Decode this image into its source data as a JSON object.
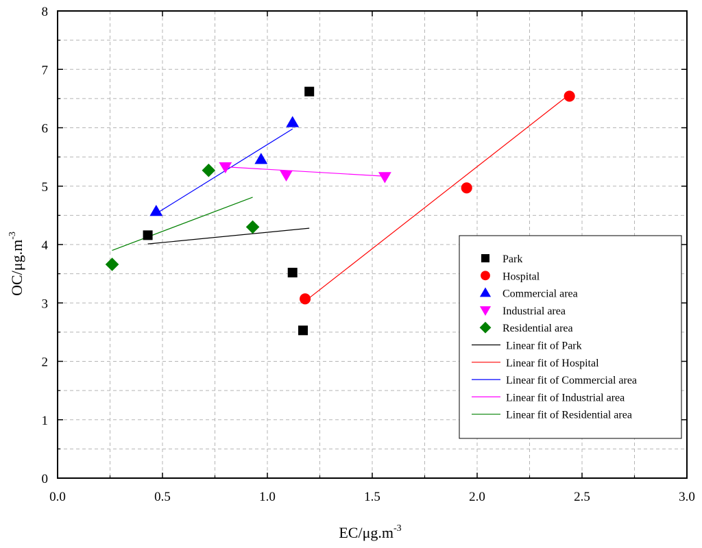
{
  "chart_data": {
    "type": "scatter",
    "xlabel": "EC/μg.m",
    "xlabel_sup": "-3",
    "ylabel": "OC/μg.m",
    "ylabel_sup": "-3",
    "xlim": [
      0,
      3
    ],
    "ylim": [
      0,
      8
    ],
    "grid": true,
    "legend_position": "right",
    "x_ticks": [
      {
        "value": 0,
        "label": "0.0"
      },
      {
        "value": 0.5,
        "label": "0.5"
      },
      {
        "value": 1.0,
        "label": "1.0"
      },
      {
        "value": 1.5,
        "label": "1.5"
      },
      {
        "value": 2.0,
        "label": "2.0"
      },
      {
        "value": 2.5,
        "label": "2.5"
      },
      {
        "value": 3.0,
        "label": "3.0"
      }
    ],
    "y_ticks": [
      {
        "value": 0,
        "label": "0"
      },
      {
        "value": 1,
        "label": "1"
      },
      {
        "value": 2,
        "label": "2"
      },
      {
        "value": 3,
        "label": "3"
      },
      {
        "value": 4,
        "label": "4"
      },
      {
        "value": 5,
        "label": "5"
      },
      {
        "value": 6,
        "label": "6"
      },
      {
        "value": 7,
        "label": "7"
      },
      {
        "value": 8,
        "label": "8"
      }
    ],
    "series": [
      {
        "name": "Park",
        "marker": "square",
        "color": "#000000",
        "points": [
          [
            0.43,
            4.16
          ],
          [
            1.12,
            3.52
          ],
          [
            1.17,
            2.53
          ],
          [
            1.2,
            6.62
          ]
        ],
        "fit": {
          "name": "Linear fit of Park",
          "color": "#000000",
          "x": [
            0.43,
            1.2
          ],
          "y": [
            4.01,
            4.28
          ]
        }
      },
      {
        "name": "Hospital",
        "marker": "circle",
        "color": "#ff0000",
        "points": [
          [
            1.18,
            3.07
          ],
          [
            1.95,
            4.97
          ],
          [
            2.44,
            6.54
          ]
        ],
        "fit": {
          "name": "Linear fit of Hospital",
          "color": "#ff0000",
          "x": [
            1.18,
            2.44
          ],
          "y": [
            3.03,
            6.57
          ]
        }
      },
      {
        "name": "Commercial area",
        "marker": "triangle-up",
        "color": "#0000ff",
        "points": [
          [
            0.47,
            4.57
          ],
          [
            0.97,
            5.46
          ],
          [
            1.12,
            6.09
          ]
        ],
        "fit": {
          "name": "Linear fit of Commercial area",
          "color": "#0000ff",
          "x": [
            0.47,
            1.12
          ],
          "y": [
            4.53,
            5.98
          ]
        }
      },
      {
        "name": "Industrial area",
        "marker": "triangle-down",
        "color": "#ff00ff",
        "points": [
          [
            0.8,
            5.33
          ],
          [
            1.09,
            5.19
          ],
          [
            1.56,
            5.16
          ]
        ],
        "fit": {
          "name": "Linear fit of Industrial area",
          "color": "#ff00ff",
          "x": [
            0.8,
            1.56
          ],
          "y": [
            5.33,
            5.17
          ]
        }
      },
      {
        "name": "Residential area",
        "marker": "diamond",
        "color": "#008000",
        "points": [
          [
            0.26,
            3.66
          ],
          [
            0.72,
            5.27
          ],
          [
            0.93,
            4.3
          ]
        ],
        "fit": {
          "name": "Linear fit of Residential area",
          "color": "#008000",
          "x": [
            0.26,
            0.93
          ],
          "y": [
            3.9,
            4.81
          ]
        }
      }
    ]
  }
}
